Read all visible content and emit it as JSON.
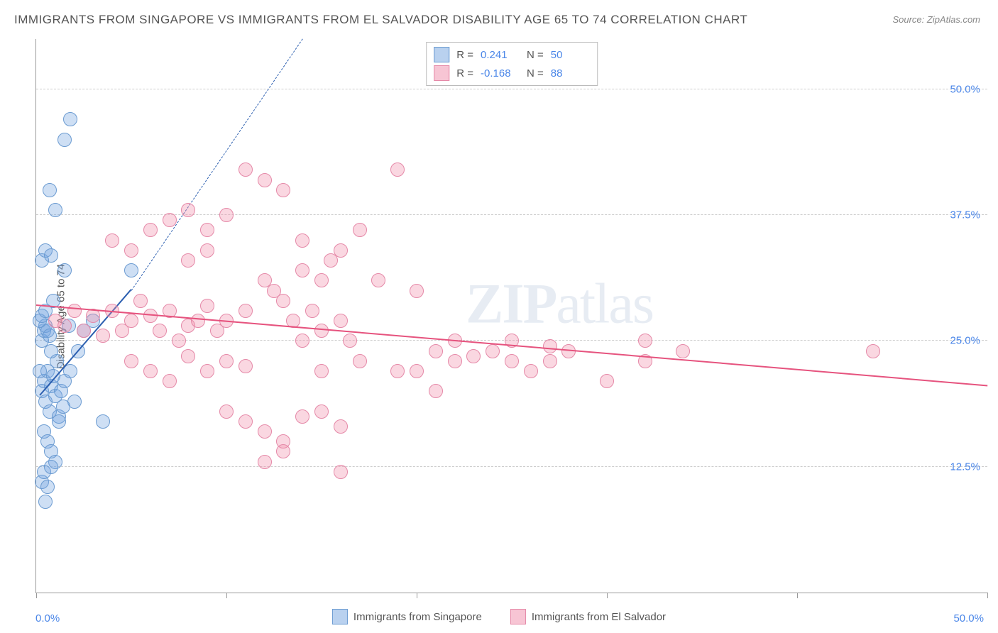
{
  "title": "IMMIGRANTS FROM SINGAPORE VS IMMIGRANTS FROM EL SALVADOR DISABILITY AGE 65 TO 74 CORRELATION CHART",
  "source": "Source: ZipAtlas.com",
  "ylabel": "Disability Age 65 to 74",
  "watermark_bold": "ZIP",
  "watermark_rest": "atlas",
  "chart": {
    "type": "scatter",
    "xlim": [
      0,
      50
    ],
    "ylim": [
      0,
      55
    ],
    "y_gridlines": [
      12.5,
      25,
      37.5,
      50
    ],
    "y_tick_labels": [
      "12.5%",
      "25.0%",
      "37.5%",
      "50.0%"
    ],
    "x_ticks": [
      0,
      10,
      20,
      30,
      40,
      50
    ],
    "x_tick_label_left": "0.0%",
    "x_tick_label_right": "50.0%",
    "background_color": "#ffffff",
    "grid_color": "#cccccc",
    "axis_color": "#999999",
    "tick_label_color": "#4a86e8",
    "point_radius": 9,
    "series": [
      {
        "name": "Immigrants from Singapore",
        "fill": "rgba(115,163,224,0.35)",
        "stroke": "#6b9bd1",
        "R": "0.241",
        "N": "50",
        "regression": {
          "x1": 0.2,
          "y1": 19.5,
          "x2": 5.0,
          "y2": 30.0,
          "color": "#2c5fb0",
          "dash_to_x": 14,
          "dash_to_y": 55
        },
        "points": [
          [
            0.3,
            20
          ],
          [
            0.4,
            21
          ],
          [
            0.5,
            19
          ],
          [
            0.6,
            22
          ],
          [
            0.7,
            18
          ],
          [
            0.8,
            20.5
          ],
          [
            0.9,
            21.5
          ],
          [
            1.0,
            19.5
          ],
          [
            1.1,
            23
          ],
          [
            1.2,
            17.5
          ],
          [
            0.2,
            22
          ],
          [
            0.3,
            25
          ],
          [
            0.4,
            26
          ],
          [
            0.5,
            26.5
          ],
          [
            0.6,
            26
          ],
          [
            0.7,
            25.5
          ],
          [
            0.8,
            24
          ],
          [
            0.2,
            27
          ],
          [
            0.3,
            27.5
          ],
          [
            0.5,
            28
          ],
          [
            1.3,
            20
          ],
          [
            1.5,
            21
          ],
          [
            1.8,
            22
          ],
          [
            2.0,
            19
          ],
          [
            0.4,
            16
          ],
          [
            0.6,
            15
          ],
          [
            0.8,
            14
          ],
          [
            1.0,
            13
          ],
          [
            1.2,
            17
          ],
          [
            1.4,
            18.5
          ],
          [
            0.3,
            33
          ],
          [
            0.5,
            34
          ],
          [
            0.8,
            33.5
          ],
          [
            1.5,
            32
          ],
          [
            3.5,
            17
          ],
          [
            1.0,
            38
          ],
          [
            0.7,
            40
          ],
          [
            1.5,
            45
          ],
          [
            1.8,
            47
          ],
          [
            0.5,
            9
          ],
          [
            0.3,
            11
          ],
          [
            0.4,
            12
          ],
          [
            0.6,
            10.5
          ],
          [
            0.8,
            12.5
          ],
          [
            2.5,
            26
          ],
          [
            3.0,
            27
          ],
          [
            5.0,
            32
          ],
          [
            2.2,
            24
          ],
          [
            1.7,
            26.5
          ],
          [
            0.9,
            29
          ]
        ]
      },
      {
        "name": "Immigrants from El Salvador",
        "fill": "rgba(240,140,170,0.35)",
        "stroke": "#e589a8",
        "R": "-0.168",
        "N": "88",
        "regression": {
          "x1": 0,
          "y1": 28.5,
          "x2": 50,
          "y2": 20.5,
          "color": "#e6537e"
        },
        "points": [
          [
            1,
            27
          ],
          [
            1.5,
            26.5
          ],
          [
            2,
            28
          ],
          [
            2.5,
            26
          ],
          [
            3,
            27.5
          ],
          [
            3.5,
            25.5
          ],
          [
            4,
            28
          ],
          [
            4.5,
            26
          ],
          [
            5,
            27
          ],
          [
            5.5,
            29
          ],
          [
            6,
            27.5
          ],
          [
            6.5,
            26
          ],
          [
            7,
            28
          ],
          [
            7.5,
            25
          ],
          [
            8,
            26.5
          ],
          [
            8.5,
            27
          ],
          [
            9,
            28.5
          ],
          [
            9.5,
            26
          ],
          [
            10,
            27
          ],
          [
            11,
            28
          ],
          [
            12,
            31
          ],
          [
            12.5,
            30
          ],
          [
            13,
            29
          ],
          [
            13.5,
            27
          ],
          [
            14,
            25
          ],
          [
            14.5,
            28
          ],
          [
            15,
            26
          ],
          [
            15.5,
            33
          ],
          [
            16,
            27
          ],
          [
            16.5,
            25
          ],
          [
            5,
            23
          ],
          [
            6,
            22
          ],
          [
            7,
            21
          ],
          [
            8,
            23.5
          ],
          [
            9,
            22
          ],
          [
            10,
            23
          ],
          [
            11,
            22.5
          ],
          [
            15,
            22
          ],
          [
            17,
            23
          ],
          [
            19,
            22
          ],
          [
            21,
            24
          ],
          [
            22,
            25
          ],
          [
            23,
            23.5
          ],
          [
            24,
            24
          ],
          [
            25,
            23
          ],
          [
            27,
            24.5
          ],
          [
            32,
            25
          ],
          [
            7,
            37
          ],
          [
            8,
            38
          ],
          [
            9,
            36
          ],
          [
            10,
            37.5
          ],
          [
            11,
            42
          ],
          [
            12,
            41
          ],
          [
            13,
            40
          ],
          [
            14,
            35
          ],
          [
            16,
            34
          ],
          [
            17,
            36
          ],
          [
            18,
            31
          ],
          [
            19,
            42
          ],
          [
            20,
            30
          ],
          [
            10,
            18
          ],
          [
            11,
            17
          ],
          [
            12,
            16
          ],
          [
            13,
            15
          ],
          [
            14,
            17.5
          ],
          [
            15,
            18
          ],
          [
            16,
            16.5
          ],
          [
            13,
            14
          ],
          [
            12,
            13
          ],
          [
            16,
            12
          ],
          [
            20,
            22
          ],
          [
            21,
            20
          ],
          [
            22,
            23
          ],
          [
            25,
            25
          ],
          [
            26,
            22
          ],
          [
            27,
            23
          ],
          [
            28,
            24
          ],
          [
            30,
            21
          ],
          [
            32,
            23
          ],
          [
            34,
            24
          ],
          [
            44,
            24
          ],
          [
            14,
            32
          ],
          [
            15,
            31
          ],
          [
            8,
            33
          ],
          [
            9,
            34
          ],
          [
            4,
            35
          ],
          [
            5,
            34
          ],
          [
            6,
            36
          ]
        ]
      }
    ]
  },
  "stat_box": {
    "rows": [
      {
        "swatch_fill": "rgba(115,163,224,0.5)",
        "swatch_border": "#6b9bd1",
        "r_label": "R =",
        "r_val": "0.241",
        "n_label": "N =",
        "n_val": "50"
      },
      {
        "swatch_fill": "rgba(240,140,170,0.5)",
        "swatch_border": "#e589a8",
        "r_label": "R =",
        "r_val": "-0.168",
        "n_label": "N =",
        "n_val": "88"
      }
    ]
  },
  "bottom_legend": [
    {
      "swatch_fill": "rgba(115,163,224,0.5)",
      "swatch_border": "#6b9bd1",
      "label": "Immigrants from Singapore"
    },
    {
      "swatch_fill": "rgba(240,140,170,0.5)",
      "swatch_border": "#e589a8",
      "label": "Immigrants from El Salvador"
    }
  ]
}
